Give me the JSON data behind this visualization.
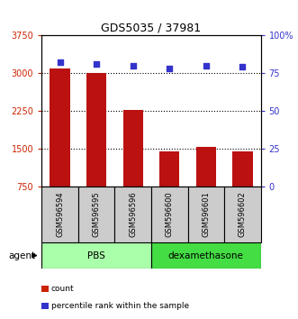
{
  "title": "GDS5035 / 37981",
  "samples": [
    "GSM596594",
    "GSM596595",
    "GSM596596",
    "GSM596600",
    "GSM596601",
    "GSM596602"
  ],
  "counts": [
    3080,
    3000,
    2270,
    1450,
    1530,
    1450
  ],
  "percentile_ranks": [
    82,
    81,
    80,
    78,
    80,
    79
  ],
  "bar_color": "#bb1111",
  "dot_color": "#3333cc",
  "ylim_left": [
    750,
    3750
  ],
  "ylim_right": [
    0,
    100
  ],
  "yticks_left": [
    750,
    1500,
    2250,
    3000,
    3750
  ],
  "yticks_right": [
    0,
    25,
    50,
    75,
    100
  ],
  "groups": [
    {
      "label": "PBS",
      "indices": [
        0,
        1,
        2
      ],
      "color": "#aaffaa"
    },
    {
      "label": "dexamethasone",
      "indices": [
        3,
        4,
        5
      ],
      "color": "#44dd44"
    }
  ],
  "agent_label": "agent",
  "legend_items": [
    {
      "label": "count",
      "color": "#cc2200"
    },
    {
      "label": "percentile rank within the sample",
      "color": "#3333cc"
    }
  ],
  "left_axis_color": "#cc2200",
  "right_axis_color": "#3333cc",
  "sample_cell_color": "#cccccc",
  "bar_width": 0.55
}
